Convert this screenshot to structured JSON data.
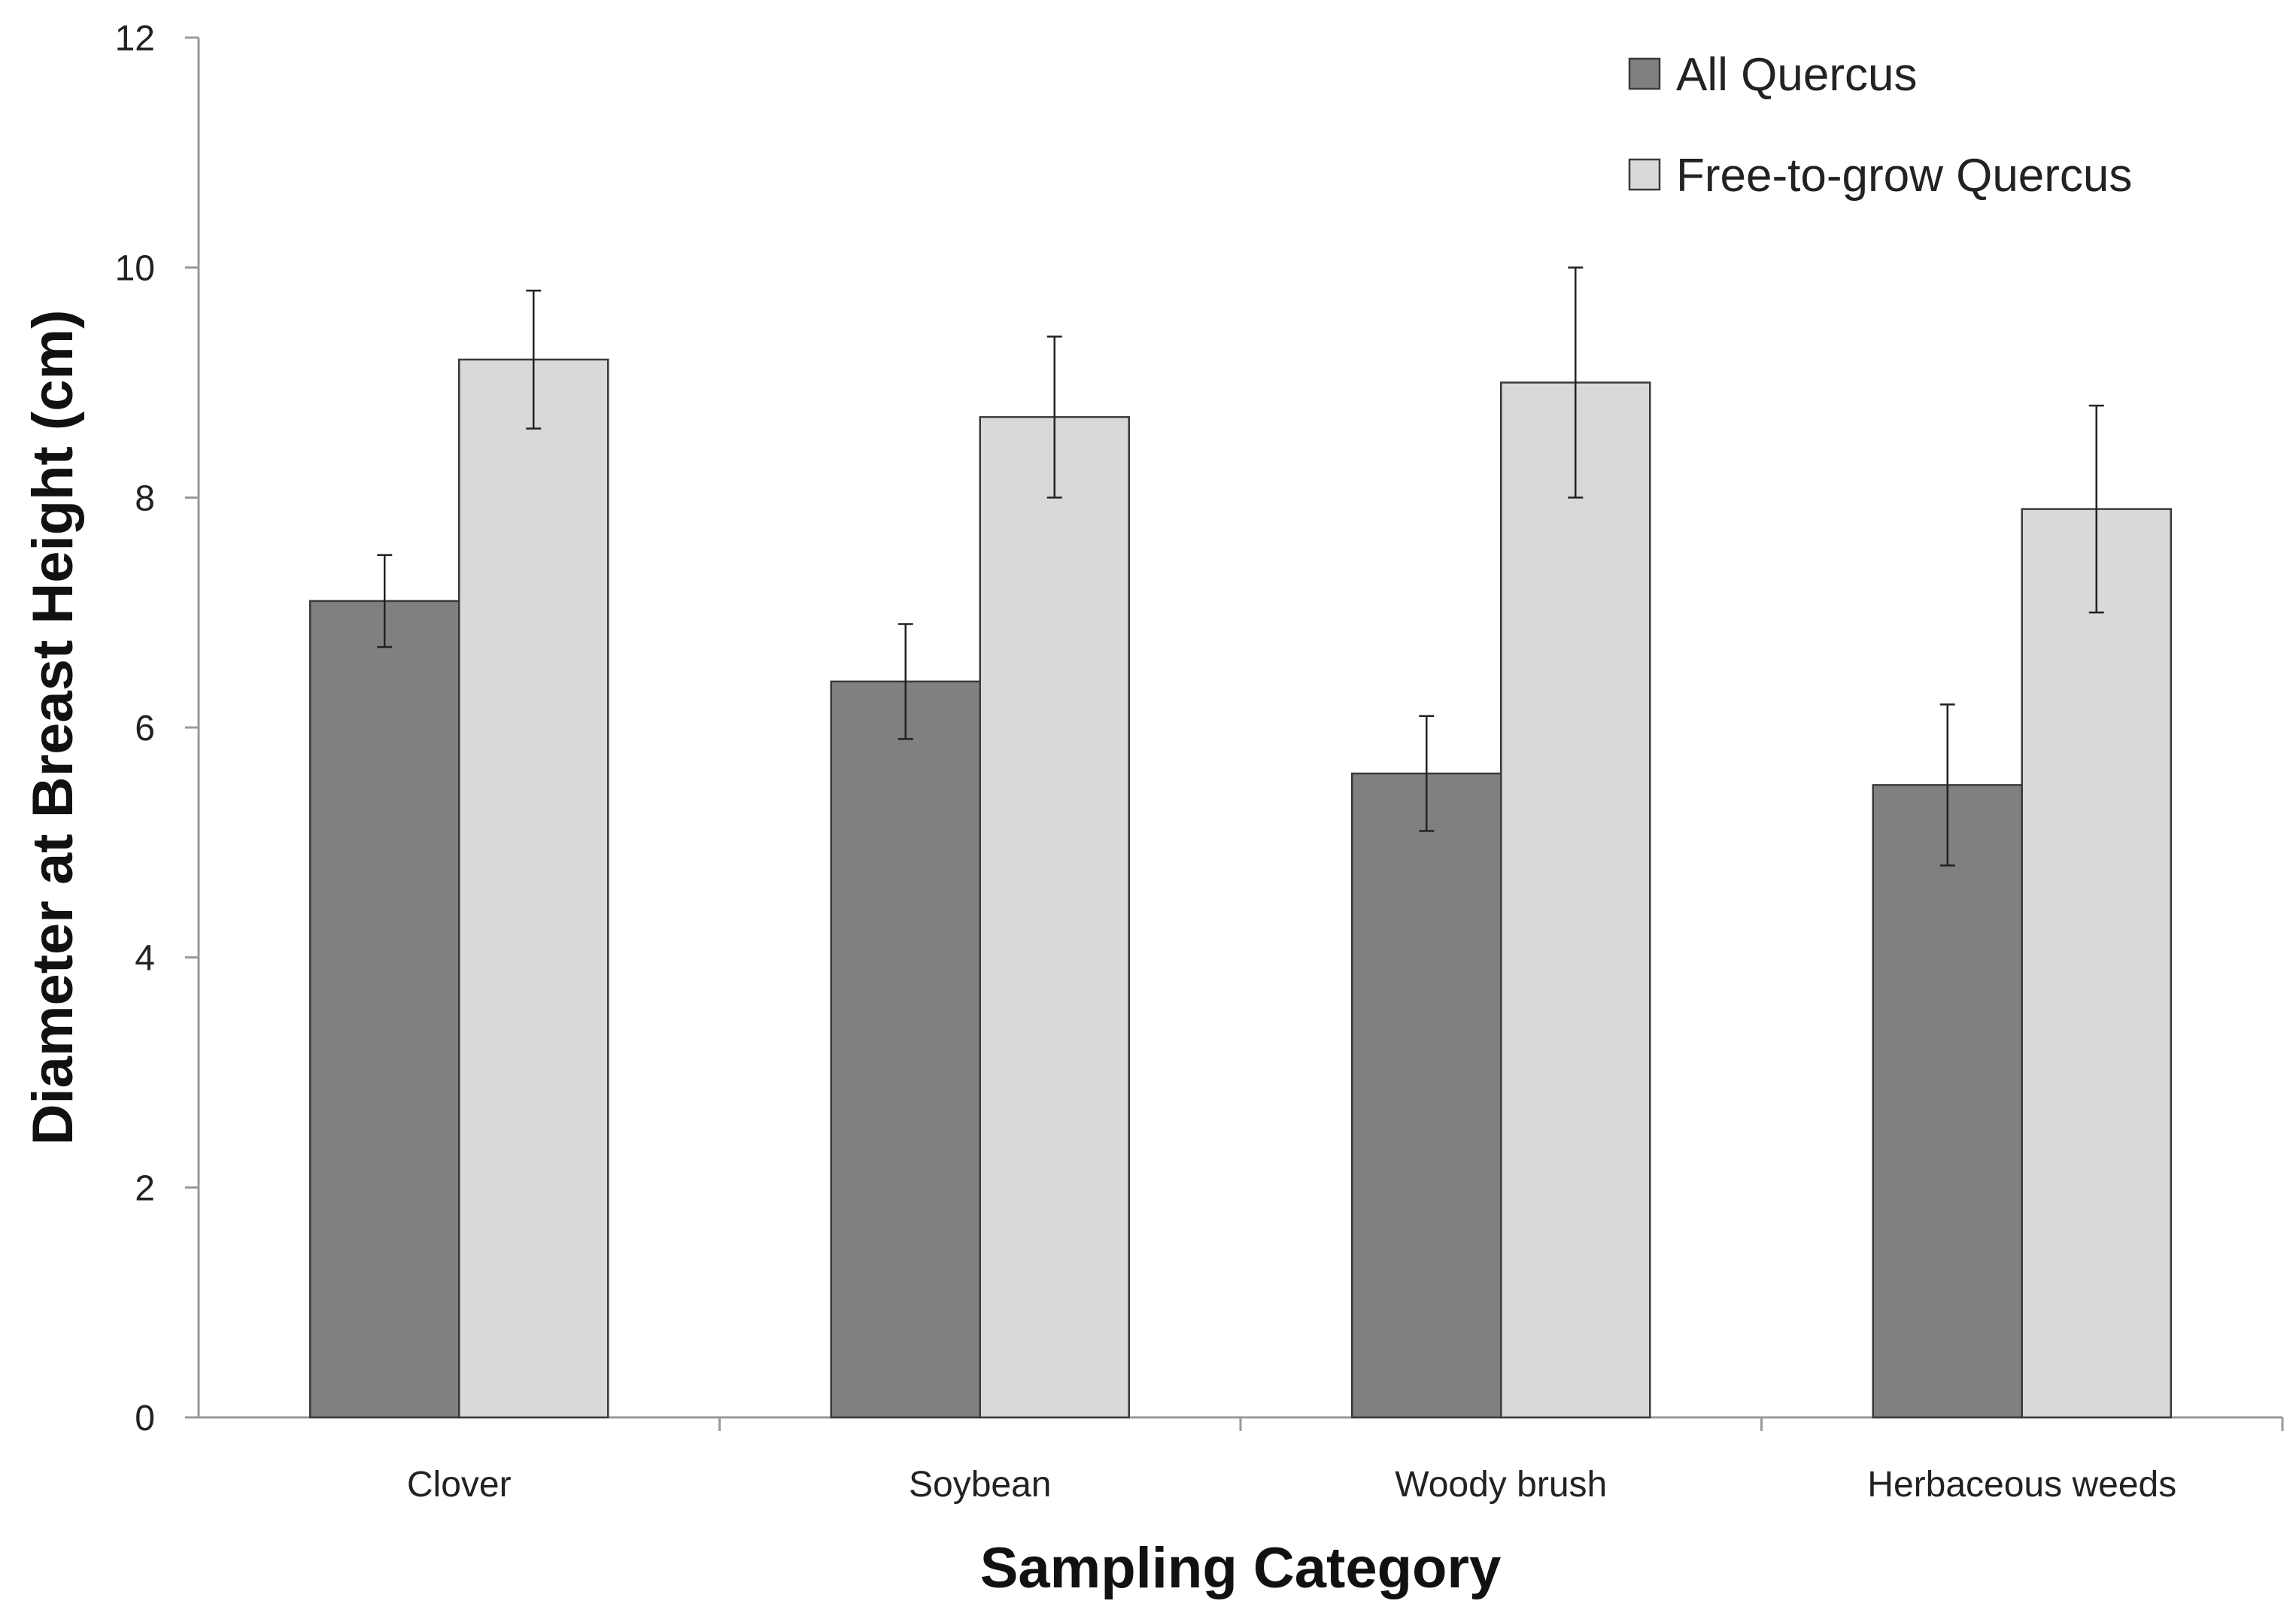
{
  "chart_data": {
    "type": "bar",
    "title": "",
    "xlabel": "Sampling Category",
    "ylabel": "Diameter at Breast Height (cm)",
    "ylim": [
      0,
      12
    ],
    "yticks": [
      0,
      2,
      4,
      6,
      8,
      10,
      12
    ],
    "grid": false,
    "legend_position": "top-right",
    "categories": [
      "Clover",
      "Soybean",
      "Woody brush",
      "Herbaceous weeds"
    ],
    "series": [
      {
        "name": "All Quercus",
        "color": "#808080",
        "values": [
          7.1,
          6.4,
          5.6,
          5.5
        ],
        "error": [
          0.4,
          0.5,
          0.5,
          0.7
        ]
      },
      {
        "name": "Free-to-grow Quercus",
        "color": "#d9d9d9",
        "values": [
          9.2,
          8.7,
          9.0,
          7.9
        ],
        "error": [
          0.6,
          0.7,
          1.0,
          0.9
        ]
      }
    ]
  }
}
